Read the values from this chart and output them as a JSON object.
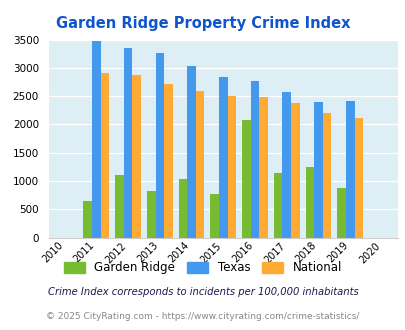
{
  "title": "Garden Ridge Property Crime Index",
  "all_years": [
    2010,
    2011,
    2012,
    2013,
    2014,
    2015,
    2016,
    2017,
    2018,
    2019,
    2020
  ],
  "bar_years": [
    2011,
    2012,
    2013,
    2014,
    2015,
    2016,
    2017,
    2018,
    2019
  ],
  "garden_ridge": [
    650,
    1110,
    820,
    1040,
    775,
    2080,
    1145,
    1240,
    880
  ],
  "texas": [
    3470,
    3360,
    3270,
    3030,
    2840,
    2770,
    2575,
    2390,
    2410
  ],
  "national": [
    2910,
    2870,
    2720,
    2600,
    2500,
    2480,
    2380,
    2210,
    2110
  ],
  "ylim": [
    0,
    3500
  ],
  "yticks": [
    0,
    500,
    1000,
    1500,
    2000,
    2500,
    3000,
    3500
  ],
  "color_garden": "#77bb33",
  "color_texas": "#4499ee",
  "color_national": "#ffaa33",
  "plot_bg": "#ddeef5",
  "title_color": "#1155cc",
  "legend_labels": [
    "Garden Ridge",
    "Texas",
    "National"
  ],
  "footnote1": "Crime Index corresponds to incidents per 100,000 inhabitants",
  "footnote2": "© 2025 CityRating.com - https://www.cityrating.com/crime-statistics/",
  "bar_width": 0.27
}
